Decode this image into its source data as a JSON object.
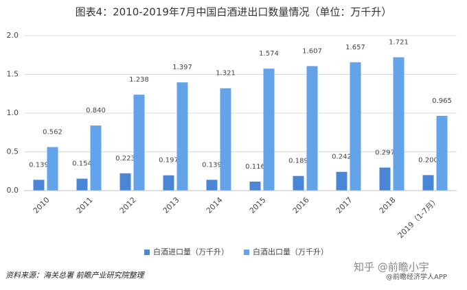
{
  "chart_data": {
    "type": "bar",
    "title": "图表4：2010-2019年7月中国白酒进出口数量情况（单位：万千升）",
    "categories": [
      "2010",
      "2011",
      "2012",
      "2013",
      "2014",
      "2015",
      "2016",
      "2017",
      "2018",
      "2019（1-7月）"
    ],
    "series": [
      {
        "name": "白酒进口量（万千升）",
        "color": "#4a86d6",
        "values": [
          0.139,
          0.154,
          0.223,
          0.197,
          0.139,
          0.116,
          0.189,
          0.242,
          0.297,
          0.2
        ],
        "value_labels": [
          "0.139",
          "0.154",
          "0.223",
          "0.197",
          "0.139",
          "0.116",
          "0.189",
          "0.242",
          "0.297",
          "0.200"
        ]
      },
      {
        "name": "白酒出口量（万千升）",
        "color": "#62a3ea",
        "values": [
          0.562,
          0.84,
          1.238,
          1.397,
          1.321,
          1.574,
          1.607,
          1.657,
          1.721,
          0.965
        ],
        "value_labels": [
          "0.562",
          "0.840",
          "1.238",
          "1.397",
          "1.321",
          "1.574",
          "1.607",
          "1.657",
          "1.721",
          "0.965"
        ]
      }
    ],
    "ylim": [
      0,
      2
    ],
    "yticks": [
      {
        "value": 0,
        "label": "0.0"
      },
      {
        "value": 0.5,
        "label": "0.5"
      },
      {
        "value": 1,
        "label": "1.0"
      },
      {
        "value": 1.5,
        "label": "1.5"
      },
      {
        "value": 2,
        "label": "2.0"
      }
    ],
    "grid": true,
    "source": "资料来源：海关总署 前瞻产业研究院整理",
    "watermark": "知乎 @前瞻小宇",
    "watermark2": "@前瞻经济学人APP"
  }
}
